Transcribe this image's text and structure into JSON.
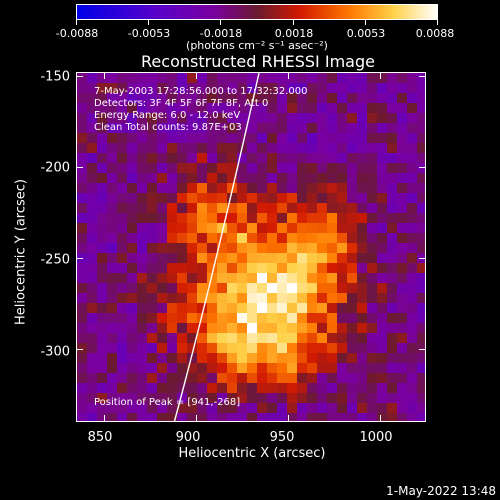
{
  "colorbar": {
    "ticks": [
      "-0.0088",
      "-0.0053",
      "-0.0018",
      "0.0018",
      "0.0053",
      "0.0088"
    ],
    "unit_label": "(photons cm⁻² s⁻¹ asec⁻²)"
  },
  "chart_data": {
    "type": "heatmap",
    "title": "Reconstructed RHESSI Image",
    "xlabel": "Heliocentric X (arcsec)",
    "ylabel": "Heliocentric Y (arcsec)",
    "xlim": [
      835,
      1025
    ],
    "ylim": [
      -340,
      -148
    ],
    "x_ticks": [
      "850",
      "900",
      "950",
      "1000"
    ],
    "y_ticks": [
      "-150",
      "-200",
      "-250",
      "-300"
    ],
    "colorbar_range": [
      -0.0088,
      0.0088
    ],
    "peak_position": [
      941,
      -268
    ],
    "annotations": [
      "7-May-2003 17:28:56.000 to 17:32:32.000",
      "Detectors: 3F 4F 5F 6F 7F 8F, Att 0",
      "Energy Range: 6.0 - 12.0 keV",
      "Clean    Total counts: 9.87E+03"
    ],
    "peak_label": "Position of Peak = [941,-268]"
  },
  "footer": {
    "timestamp": "1-May-2022 13:48"
  },
  "colors": {
    "background": "#000000",
    "limb": "#ffffff"
  }
}
